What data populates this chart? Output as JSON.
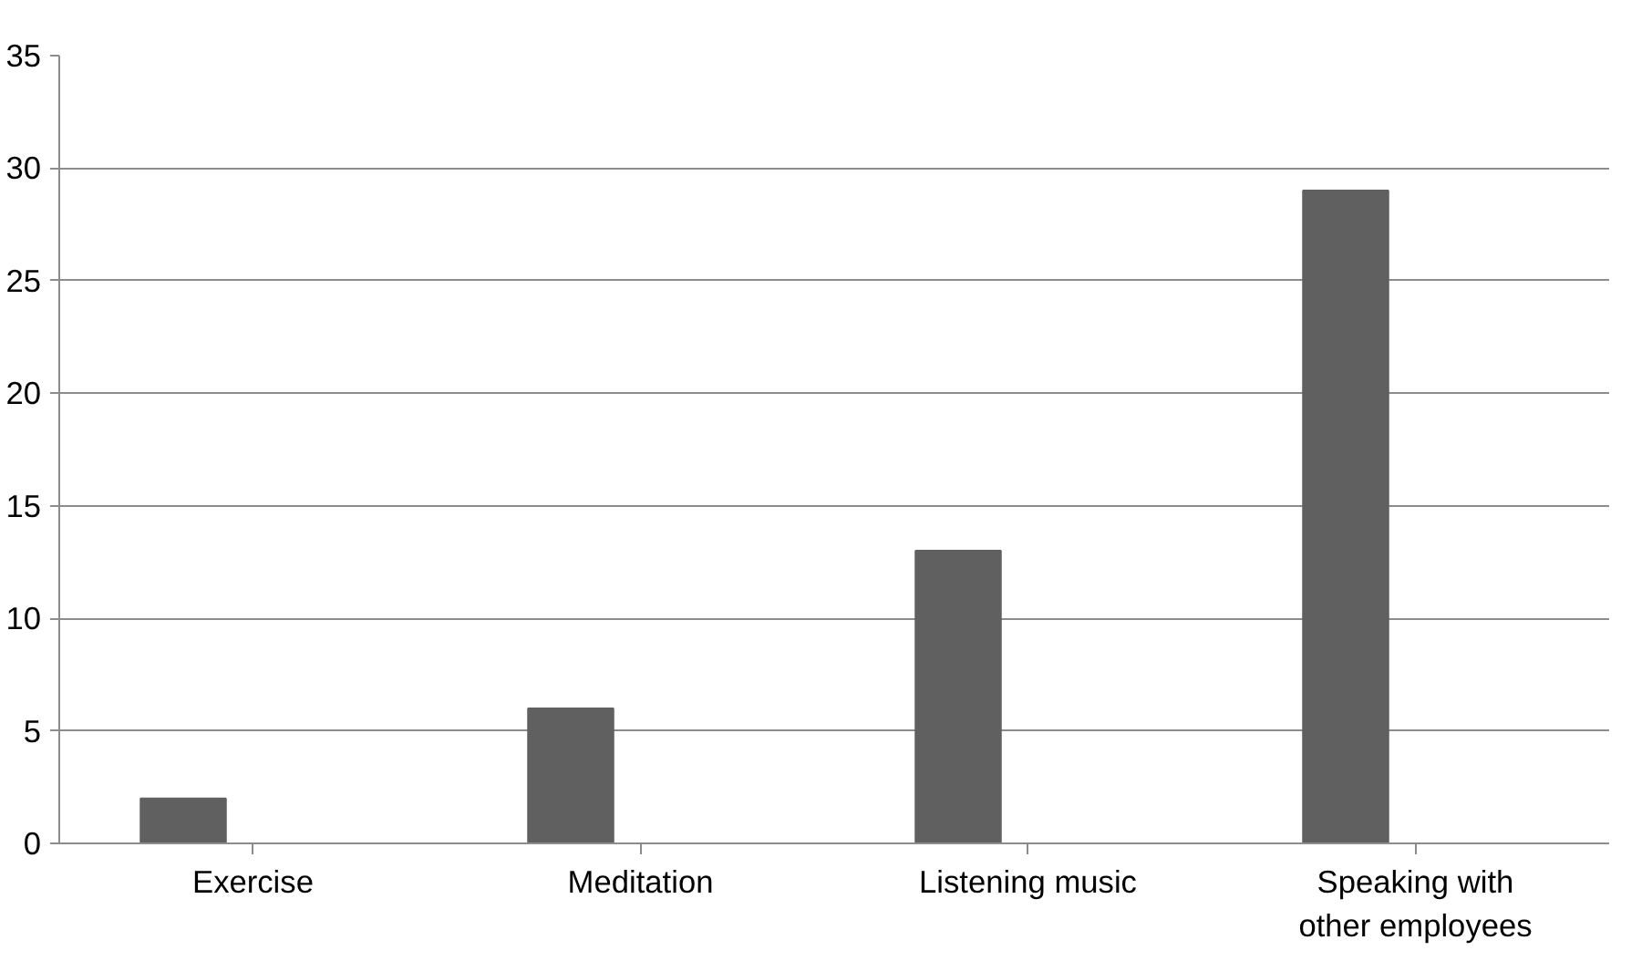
{
  "chart_data": {
    "type": "bar",
    "categories": [
      "Exercise",
      "Meditation",
      "Listening music",
      "Speaking with other employees"
    ],
    "values": [
      2,
      6,
      13,
      29
    ],
    "color": "#606060",
    "ylim": [
      0,
      35
    ],
    "yticks": [
      0,
      5,
      10,
      15,
      20,
      25,
      30,
      35
    ],
    "grid": "y"
  }
}
